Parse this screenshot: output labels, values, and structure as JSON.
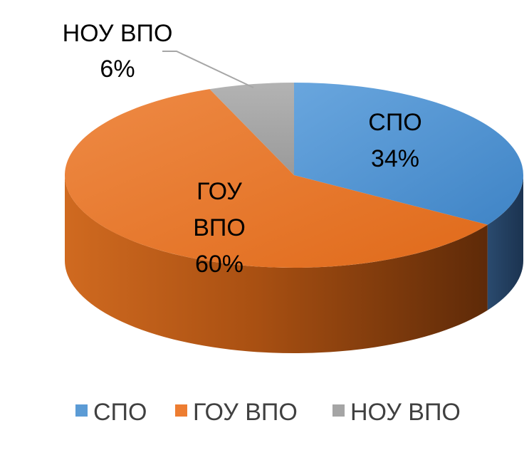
{
  "chart_data": {
    "type": "pie",
    "style": "3d",
    "categories": [
      "СПО",
      "ГОУ ВПО",
      "НОУ ВПО"
    ],
    "values": [
      34,
      60,
      6
    ],
    "data_labels": [
      {
        "name": "СПО",
        "pct": "34%"
      },
      {
        "name_lines": [
          "ГОУ",
          "ВПО"
        ],
        "pct": "60%"
      },
      {
        "name": "НОУ ВПО",
        "pct": "6%"
      }
    ],
    "colors": [
      "#5B9BD5",
      "#ED7D31",
      "#A5A5A5"
    ],
    "legend": {
      "position": "bottom",
      "entries": [
        "СПО",
        "ГОУ ВПО",
        "НОУ ВПО"
      ]
    }
  }
}
